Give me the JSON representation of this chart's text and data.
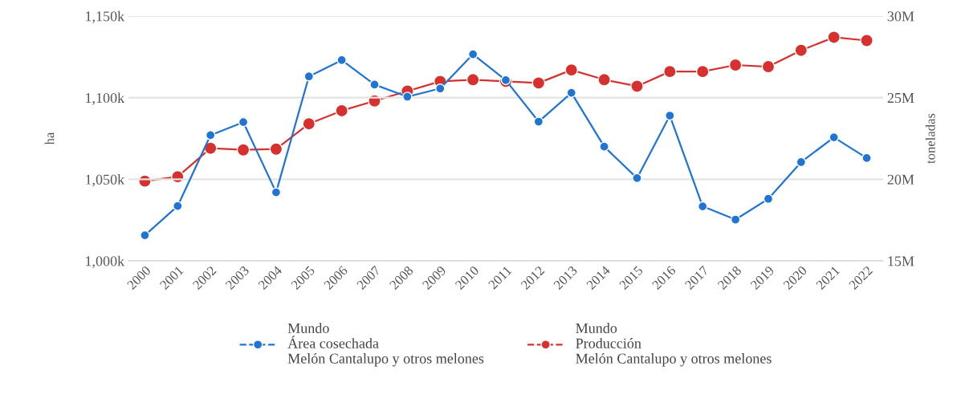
{
  "chart_data": {
    "type": "line",
    "categories": [
      "2000",
      "2001",
      "2002",
      "2003",
      "2004",
      "2005",
      "2006",
      "2007",
      "2008",
      "2009",
      "2010",
      "2011",
      "2012",
      "2013",
      "2014",
      "2015",
      "2016",
      "2017",
      "2018",
      "2019",
      "2020",
      "2021",
      "2022"
    ],
    "series": [
      {
        "name": "Mundo\nÁrea cosechada\nMelón Cantalupo y otros melones",
        "color": "#1f74d4",
        "values": [
          1015700,
          1033600,
          1077000,
          1085000,
          1042000,
          1113000,
          1123000,
          1108000,
          1100600,
          1105600,
          1126600,
          1110700,
          1085300,
          1103000,
          1070000,
          1050700,
          1089000,
          1033400,
          1025300,
          1038000,
          1060500,
          1075700,
          1063000
        ]
      },
      {
        "name": "Mundo\nProducción\nMelón Cantalupo y otros melones",
        "color": "#d6302f",
        "axis": "y2",
        "values": [
          19890000,
          20160000,
          21900000,
          21800000,
          21850000,
          23400000,
          24200000,
          24800000,
          25400000,
          26000000,
          26100000,
          26000000,
          25900000,
          26700000,
          26100000,
          25700000,
          26600000,
          26600000,
          27000000,
          26900000,
          27900000,
          28700000,
          28500000
        ]
      }
    ],
    "ylabel": "ha",
    "y2label": "toneladas",
    "ylim": [
      1000000,
      1150000
    ],
    "yticks": [
      {
        "value": 1000000,
        "label": "1,000k"
      },
      {
        "value": 1050000,
        "label": "1,050k"
      },
      {
        "value": 1100000,
        "label": "1,100k"
      },
      {
        "value": 1150000,
        "label": "1,150k"
      }
    ],
    "y2lim": [
      15000000,
      30000000
    ],
    "y2ticks": [
      {
        "value": 15000000,
        "label": "15M"
      },
      {
        "value": 20000000,
        "label": "20M"
      },
      {
        "value": 25000000,
        "label": "25M"
      },
      {
        "value": 30000000,
        "label": "30M"
      }
    ],
    "grid": "y",
    "legend": "bottom",
    "marker": "circle",
    "line_style": "solid"
  }
}
